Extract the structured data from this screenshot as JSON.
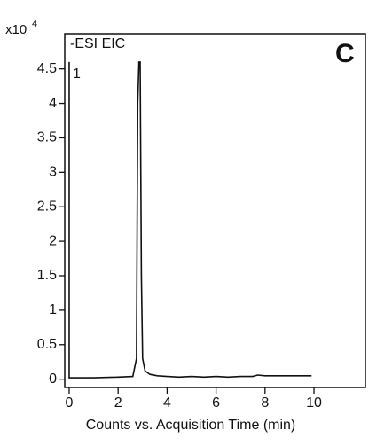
{
  "chart_data": {
    "type": "line",
    "y_multiplier": "x10",
    "y_multiplier_exponent": "4",
    "annotation": "-ESI EIC",
    "panel_label": "C",
    "trace_label": "1",
    "x_label": "Counts vs. Acquisition Time (min)",
    "x": [
      0,
      0,
      0.1,
      1.0,
      2.0,
      2.6,
      2.75,
      2.8,
      2.85,
      2.9,
      2.95,
      3.0,
      3.1,
      3.3,
      3.6,
      4.0,
      4.5,
      5.0,
      5.5,
      6.0,
      6.5,
      7.0,
      7.5,
      7.7,
      8.0,
      9.0,
      9.9
    ],
    "series": [
      {
        "color": "#111111",
        "values": [
          4.6,
          0.02,
          0.02,
          0.02,
          0.03,
          0.04,
          0.3,
          4.0,
          4.6,
          4.6,
          1.5,
          0.3,
          0.12,
          0.07,
          0.05,
          0.04,
          0.03,
          0.04,
          0.03,
          0.04,
          0.03,
          0.04,
          0.04,
          0.06,
          0.05,
          0.05,
          0.05
        ]
      }
    ],
    "xlim": [
      -0.18,
      12.1
    ],
    "ylim": [
      -0.12,
      5.01
    ],
    "xticks": [
      0,
      2,
      4,
      6,
      8,
      10
    ],
    "yticks": [
      0,
      0.5,
      1,
      1.5,
      2,
      2.5,
      3,
      3.5,
      4,
      4.5
    ]
  }
}
